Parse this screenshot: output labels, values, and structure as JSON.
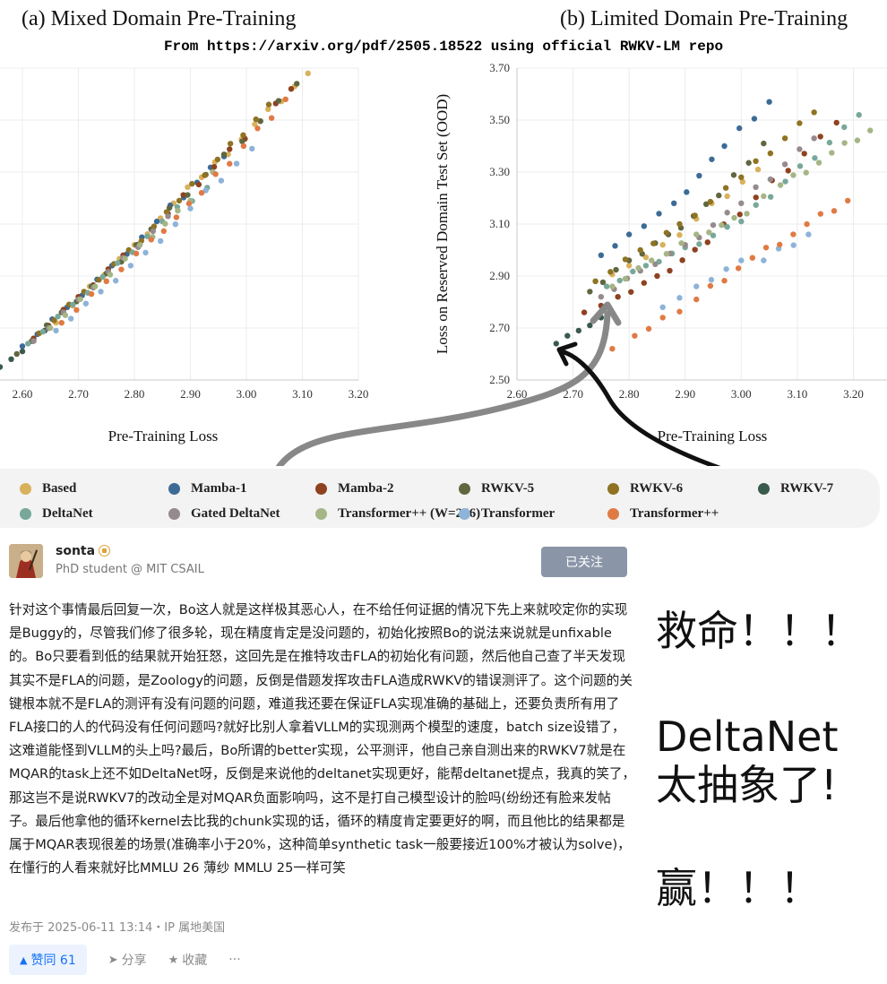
{
  "figure": {
    "title_a": "(a) Mixed Domain Pre-Training",
    "title_b": "(b) Limited Domain Pre-Training",
    "subtitle": "From https://arxiv.org/pdf/2505.18522 using official RWKV-LM repo"
  },
  "chart_data": [
    {
      "type": "scatter",
      "title": "(a) Mixed Domain Pre-Training",
      "xlabel": "Pre-Training Loss",
      "ylabel": "",
      "xlim": [
        2.56,
        3.2
      ],
      "ylim": [
        2.5,
        3.7
      ],
      "xticks": [
        "2.60",
        "2.70",
        "2.80",
        "2.90",
        "3.00",
        "3.10",
        "3.20"
      ],
      "grid": true,
      "series": [
        {
          "name": "Based",
          "points": [
            [
              2.66,
              2.72
            ],
            [
              2.72,
              2.86
            ],
            [
              2.8,
              3.02
            ],
            [
              2.87,
              3.18
            ],
            [
              2.92,
              3.28
            ],
            [
              3.11,
              3.68
            ]
          ]
        },
        {
          "name": "Mamba-1",
          "points": [
            [
              2.6,
              2.63
            ],
            [
              2.68,
              2.78
            ],
            [
              2.76,
              2.94
            ],
            [
              2.84,
              3.11
            ],
            [
              2.96,
              3.36
            ]
          ]
        },
        {
          "name": "Mamba-2",
          "points": [
            [
              2.62,
              2.66
            ],
            [
              2.7,
              2.82
            ],
            [
              2.78,
              2.98
            ],
            [
              2.86,
              3.14
            ],
            [
              3.08,
              3.62
            ]
          ]
        },
        {
          "name": "RWKV-5",
          "points": [
            [
              2.59,
              2.6
            ],
            [
              2.67,
              2.76
            ],
            [
              2.75,
              2.91
            ],
            [
              2.83,
              3.08
            ],
            [
              3.09,
              3.64
            ]
          ]
        },
        {
          "name": "RWKV-6",
          "points": [
            [
              2.63,
              2.68
            ],
            [
              2.71,
              2.84
            ],
            [
              2.79,
              3.0
            ],
            [
              2.88,
              3.19
            ],
            [
              3.04,
              3.56
            ]
          ]
        },
        {
          "name": "RWKV-7",
          "points": [
            [
              2.56,
              2.55
            ],
            [
              2.58,
              2.58
            ],
            [
              2.6,
              2.61
            ],
            [
              2.62,
              2.65
            ],
            [
              2.64,
              2.69
            ]
          ]
        },
        {
          "name": "DeltaNet",
          "points": [
            [
              2.61,
              2.64
            ],
            [
              2.69,
              2.79
            ],
            [
              2.77,
              2.95
            ],
            [
              2.85,
              3.11
            ],
            [
              2.93,
              3.24
            ]
          ]
        },
        {
          "name": "Gated DeltaNet",
          "points": [
            [
              2.62,
              2.65
            ],
            [
              2.7,
              2.81
            ],
            [
              2.78,
              2.97
            ],
            [
              2.86,
              3.13
            ]
          ]
        },
        {
          "name": "Transformer++ (W=256)",
          "points": [
            [
              2.65,
              2.7
            ],
            [
              2.73,
              2.86
            ],
            [
              2.81,
              3.02
            ],
            [
              2.9,
              3.19
            ],
            [
              2.94,
              3.3
            ]
          ]
        },
        {
          "name": "Transformer",
          "points": [
            [
              2.66,
              2.69
            ],
            [
              2.74,
              2.84
            ],
            [
              2.82,
              2.99
            ],
            [
              2.9,
              3.16
            ],
            [
              3.01,
              3.39
            ]
          ]
        },
        {
          "name": "Transformer++",
          "points": [
            [
              2.67,
              2.72
            ],
            [
              2.75,
              2.88
            ],
            [
              2.83,
              3.04
            ],
            [
              2.92,
              3.22
            ],
            [
              3.07,
              3.58
            ]
          ]
        }
      ]
    },
    {
      "type": "scatter",
      "title": "(b) Limited Domain Pre-Training",
      "xlabel": "Pre-Training Loss",
      "ylabel": "Loss on Reserved Domain Test Set (OOD)",
      "xlim": [
        2.6,
        3.26
      ],
      "ylim": [
        2.5,
        3.7
      ],
      "xticks": [
        "2.60",
        "2.70",
        "2.80",
        "2.90",
        "3.00",
        "3.10",
        "3.20"
      ],
      "yticks": [
        "2.50",
        "2.70",
        "2.90",
        "3.10",
        "3.30",
        "3.50",
        "3.70"
      ],
      "grid": true,
      "series": [
        {
          "name": "Based",
          "points": [
            [
              2.74,
              2.88
            ],
            [
              2.8,
              2.94
            ],
            [
              2.86,
              3.02
            ],
            [
              2.92,
              3.12
            ],
            [
              3.03,
              3.31
            ]
          ]
        },
        {
          "name": "Mamba-1",
          "points": [
            [
              2.75,
              2.98
            ],
            [
              2.8,
              3.06
            ],
            [
              2.88,
              3.18
            ],
            [
              2.97,
              3.4
            ],
            [
              3.05,
              3.57
            ]
          ]
        },
        {
          "name": "Mamba-2",
          "points": [
            [
              2.72,
              2.76
            ],
            [
              2.78,
              2.82
            ],
            [
              2.85,
              2.9
            ],
            [
              2.94,
              3.03
            ],
            [
              3.17,
              3.49
            ]
          ]
        },
        {
          "name": "RWKV-5",
          "points": [
            [
              2.73,
              2.84
            ],
            [
              2.8,
              2.96
            ],
            [
              2.87,
              3.06
            ],
            [
              2.96,
              3.21
            ],
            [
              3.04,
              3.41
            ]
          ]
        },
        {
          "name": "RWKV-6",
          "points": [
            [
              2.74,
              2.88
            ],
            [
              2.82,
              3.0
            ],
            [
              2.89,
              3.1
            ],
            [
              3.0,
              3.28
            ],
            [
              3.13,
              3.53
            ]
          ]
        },
        {
          "name": "RWKV-7",
          "points": [
            [
              2.67,
              2.64
            ],
            [
              2.69,
              2.67
            ],
            [
              2.71,
              2.69
            ],
            [
              2.73,
              2.71
            ],
            [
              2.75,
              2.74
            ]
          ]
        },
        {
          "name": "DeltaNet",
          "points": [
            [
              2.76,
              2.86
            ],
            [
              2.83,
              2.94
            ],
            [
              2.9,
              3.01
            ],
            [
              3.0,
              3.11
            ],
            [
              3.21,
              3.52
            ]
          ]
        },
        {
          "name": "Gated DeltaNet",
          "points": [
            [
              2.75,
              2.82
            ],
            [
              2.82,
              2.92
            ],
            [
              2.9,
              3.02
            ],
            [
              3.0,
              3.18
            ],
            [
              3.13,
              3.43
            ]
          ]
        },
        {
          "name": "Transformer++ (W=256)",
          "points": [
            [
              2.77,
              2.86
            ],
            [
              2.84,
              2.96
            ],
            [
              2.92,
              3.06
            ],
            [
              3.01,
              3.14
            ],
            [
              3.07,
              3.25
            ],
            [
              3.23,
              3.46
            ]
          ]
        },
        {
          "name": "Transformer",
          "points": [
            [
              2.86,
              2.78
            ],
            [
              2.92,
              2.86
            ],
            [
              3.0,
              2.96
            ],
            [
              3.04,
              2.96
            ],
            [
              3.12,
              3.06
            ]
          ]
        },
        {
          "name": "Transformer++",
          "points": [
            [
              2.77,
              2.62
            ],
            [
              2.81,
              2.67
            ],
            [
              2.86,
              2.74
            ],
            [
              2.92,
              2.81
            ],
            [
              3.02,
              2.97
            ],
            [
              3.19,
              3.19
            ]
          ]
        }
      ]
    }
  ],
  "legend": [
    {
      "label": "Based",
      "color": "#d9b15c"
    },
    {
      "label": "Mamba-1",
      "color": "#3d6b96"
    },
    {
      "label": "Mamba-2",
      "color": "#8e4220"
    },
    {
      "label": "RWKV-5",
      "color": "#60663f"
    },
    {
      "label": "RWKV-6",
      "color": "#8f7323"
    },
    {
      "label": "RWKV-7",
      "color": "#3a5a4c"
    },
    {
      "label": "DeltaNet",
      "color": "#78a89a"
    },
    {
      "label": "Gated DeltaNet",
      "color": "#968a8d"
    },
    {
      "label": "Transformer++  (W=256)",
      "color": "#a5b585"
    },
    {
      "label": "Transformer",
      "color": "#8db3d8"
    },
    {
      "label": "Transformer++",
      "color": "#e07a45"
    }
  ],
  "post": {
    "author_name": "sonta",
    "author_bio": "PhD student @ MIT CSAIL",
    "follow_label": "已关注",
    "body": "针对这个事情最后回复一次，Bo这人就是这样极其恶心人，在不给任何证据的情况下先上来就咬定你的实现是Buggy的，尽管我们修了很多轮，现在精度肯定是没问题的，初始化按照Bo的说法来说就是unfixable的。Bo只要看到低的结果就开始狂怒，这回先是在推特攻击FLA的初始化有问题，然后他自己查了半天发现其实不是FLA的问题，是Zoology的问题，反倒是借题发挥攻击FLA造成RWKV的错误测评了。这个问题的关键根本就不是FLA的测评有没有问题的问题，难道我还要在保证FLA实现准确的基础上，还要负责所有用了FLA接口的人的代码没有任何问题吗?就好比别人拿着VLLM的实现测两个模型的速度，batch size设错了，这难道能怪到VLLM的头上吗?最后，Bo所谓的better实现，公平测评，他自己亲自测出来的RWKV7就是在MQAR的task上还不如DeltaNet呀，反倒是来说他的deltanet实现更好，能帮deltanet提点，我真的笑了，那这岂不是说RWKV7的改动全是对MQAR负面影响吗，这不是打自己模型设计的脸吗(纷纷还有脸来发帖子。最后他拿他的循环kernel去比我的chunk实现的话，循环的精度肯定要更好的啊，而且他比的结果都是属于MQAR表现很差的场景(准确率小于20%，这种简单synthetic task一般要接近100%才被认为solve)，在懂行的人看来就好比MMLU 26 薄纱 MMLU 25一样可笑",
    "meta": "发布于 2025-06-11 13:14・IP 属地美国",
    "vote_label": "赞同 61",
    "share_label": "分享",
    "collect_label": "收藏",
    "more_label": "···"
  },
  "side": {
    "line1": "救命！！！",
    "line2": "DeltaNet",
    "line3": "太抽象了!",
    "line4": "赢！！！"
  }
}
